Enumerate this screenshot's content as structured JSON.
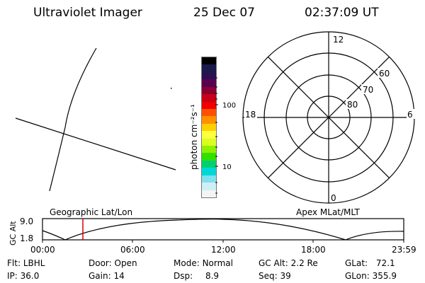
{
  "header": {
    "title": "Ultraviolet Imager",
    "date": "25 Dec 07",
    "time": "02:37:09 UT"
  },
  "colorbar": {
    "label": "photon cm⁻²s⁻¹",
    "ticks": [
      "100",
      "10"
    ],
    "colors": [
      "#000000",
      "#1a1a4a",
      "#2a1050",
      "#5a0050",
      "#8a0030",
      "#c80018",
      "#f00000",
      "#ff5000",
      "#ff9000",
      "#ffd000",
      "#ffff40",
      "#d8ff20",
      "#90f000",
      "#30e000",
      "#00d070",
      "#00d8d8",
      "#80e0f0",
      "#d0eff4",
      "#f4f4f4"
    ]
  },
  "polar": {
    "mlt_labels": {
      "top": "12",
      "bottom": "0",
      "left": "18",
      "right": "6"
    },
    "lat_labels": [
      "60",
      "70",
      "80"
    ]
  },
  "timeline": {
    "left_label": "Geographic Lat/Lon",
    "right_label": "Apex MLat/MLT",
    "axis_title": "GC Alt",
    "y_ticks": [
      "9.0",
      "1.8"
    ],
    "x_ticks": [
      "00:00",
      "06:00",
      "12:00",
      "18:00",
      "23:59"
    ],
    "marker_color": "#dd0000"
  },
  "info": {
    "row1": [
      {
        "label": "Flt:",
        "value": "LBHL"
      },
      {
        "label": "Door:",
        "value": "Open"
      },
      {
        "label": "Mode:",
        "value": "Normal"
      },
      {
        "label": "GC Alt:",
        "value": "2.2 Re"
      },
      {
        "label": "GLat:",
        "value": "72.1"
      }
    ],
    "row2": [
      {
        "label": "IP:",
        "value": "36.0"
      },
      {
        "label": "Gain:",
        "value": "14"
      },
      {
        "label": "Dsp:",
        "value": "8.9"
      },
      {
        "label": "Seq:",
        "value": "39"
      },
      {
        "label": "GLon:",
        "value": "355.9"
      }
    ]
  }
}
